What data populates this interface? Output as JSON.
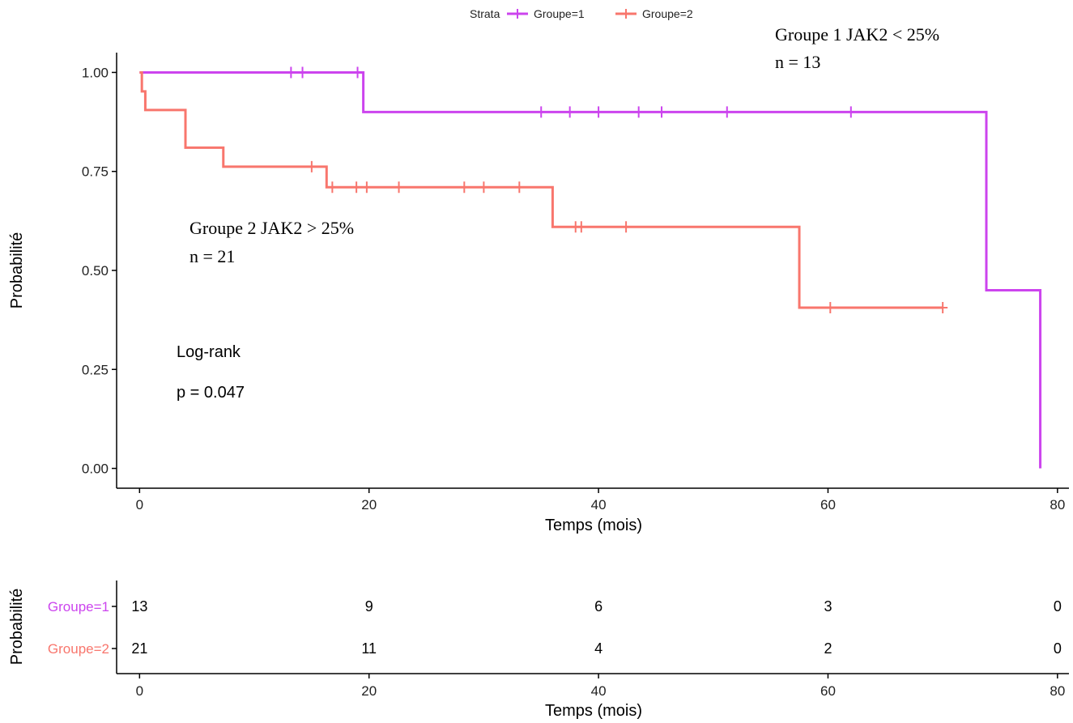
{
  "legend": {
    "title": "Strata",
    "items": [
      {
        "label": "Groupe=1",
        "color": "#cc44ee"
      },
      {
        "label": "Groupe=2",
        "color": "#f8766d"
      }
    ]
  },
  "annotations": {
    "group1_line1": "Groupe 1 JAK2 < 25%",
    "group1_line2": "n = 13",
    "group2_line1": "Groupe 2 JAK2 > 25%",
    "group2_line2": "n = 21",
    "test_label": "Log-rank",
    "p_value": "p = 0.047"
  },
  "chart_data": [
    {
      "type": "line",
      "subtype": "kaplan-meier-step",
      "xlabel": "Temps (mois)",
      "ylabel": "Probabilité",
      "xlim": [
        -2,
        81
      ],
      "ylim": [
        -0.05,
        1.05
      ],
      "x_ticks": [
        0,
        20,
        40,
        60,
        80
      ],
      "y_ticks": [
        0.0,
        0.25,
        0.5,
        0.75,
        1.0
      ],
      "x_tick_labels": [
        "0",
        "20",
        "40",
        "60",
        "80"
      ],
      "y_tick_labels": [
        "0.00",
        "0.25",
        "0.50",
        "0.75",
        "1.00"
      ],
      "grid": false,
      "legend_position": "top",
      "series": [
        {
          "name": "Groupe=1",
          "color": "#cc44ee",
          "steps": [
            [
              0,
              1.0
            ],
            [
              19.5,
              0.9
            ],
            [
              73.8,
              0.45
            ],
            [
              78.5,
              0.0
            ]
          ],
          "end_time": 78.5,
          "censored": [
            [
              13.2,
              1.0
            ],
            [
              14.2,
              1.0
            ],
            [
              19.0,
              1.0
            ],
            [
              35.0,
              0.9
            ],
            [
              37.5,
              0.9
            ],
            [
              40.0,
              0.9
            ],
            [
              43.5,
              0.9
            ],
            [
              45.5,
              0.9
            ],
            [
              51.2,
              0.9
            ],
            [
              62.0,
              0.9
            ]
          ]
        },
        {
          "name": "Groupe=2",
          "color": "#f8766d",
          "steps": [
            [
              0,
              1.0
            ],
            [
              0.2,
              0.952
            ],
            [
              0.5,
              0.905
            ],
            [
              4.0,
              0.81
            ],
            [
              7.3,
              0.762
            ],
            [
              16.3,
              0.71
            ],
            [
              36.0,
              0.61
            ],
            [
              57.5,
              0.406
            ]
          ],
          "end_time": 70.0,
          "censored": [
            [
              15.0,
              0.762
            ],
            [
              16.8,
              0.71
            ],
            [
              18.9,
              0.71
            ],
            [
              19.8,
              0.71
            ],
            [
              22.6,
              0.71
            ],
            [
              28.3,
              0.71
            ],
            [
              30.0,
              0.71
            ],
            [
              33.1,
              0.71
            ],
            [
              38.0,
              0.61
            ],
            [
              38.5,
              0.61
            ],
            [
              42.4,
              0.61
            ],
            [
              60.2,
              0.406
            ],
            [
              70.0,
              0.406
            ]
          ]
        }
      ]
    },
    {
      "type": "table",
      "subtype": "risk-table",
      "xlabel": "Temps (mois)",
      "ylabel": "Probabilité",
      "xlim": [
        -2,
        81
      ],
      "x_ticks": [
        0,
        20,
        40,
        60,
        80
      ],
      "x_tick_labels": [
        "0",
        "20",
        "40",
        "60",
        "80"
      ],
      "rows": [
        {
          "name": "Groupe=1",
          "color": "#cc44ee",
          "values": [
            13,
            9,
            6,
            3,
            0
          ]
        },
        {
          "name": "Groupe=2",
          "color": "#f8766d",
          "values": [
            21,
            11,
            4,
            2,
            0
          ]
        }
      ]
    }
  ]
}
